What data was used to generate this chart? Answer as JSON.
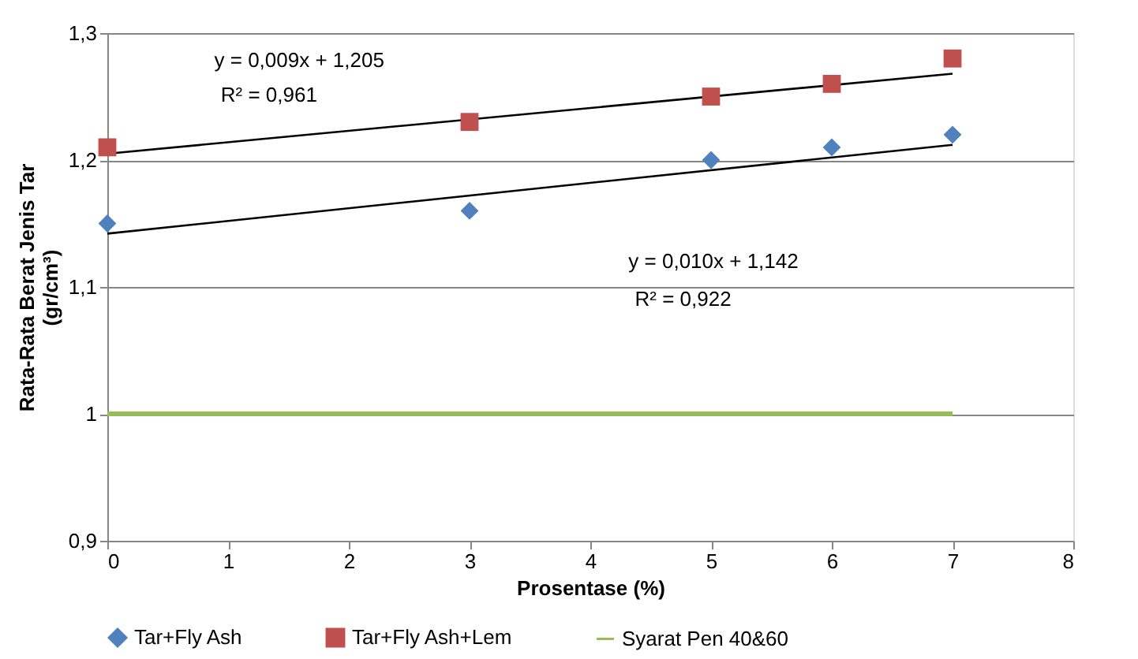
{
  "chart_data": {
    "type": "scatter",
    "xlabel": "Prosentase (%)",
    "ylabel": "Rata-Rata Berat Jenis Tar\n(gr/cm³)",
    "xlim": [
      0,
      8
    ],
    "xticks": [
      0,
      1,
      2,
      3,
      4,
      5,
      6,
      7,
      8
    ],
    "ylim": [
      0.9,
      1.3
    ],
    "yticks": [
      {
        "value": 0.9,
        "label": "0,9"
      },
      {
        "value": 1.0,
        "label": "1"
      },
      {
        "value": 1.1,
        "label": "1,1"
      },
      {
        "value": 1.2,
        "label": "1,2"
      },
      {
        "value": 1.3,
        "label": "1,3"
      }
    ],
    "grid": "y",
    "legend": "bottom",
    "series": [
      {
        "name": "Tar+Fly Ash",
        "marker": "diamond",
        "color": "#4f81bd",
        "x": [
          0,
          3,
          5,
          6,
          7
        ],
        "values": [
          1.15,
          1.16,
          1.2,
          1.21,
          1.22
        ]
      },
      {
        "name": "Tar+Fly Ash+Lem",
        "marker": "square",
        "color": "#c0504d",
        "x": [
          0,
          3,
          5,
          6,
          7
        ],
        "values": [
          1.21,
          1.23,
          1.25,
          1.26,
          1.28
        ]
      },
      {
        "name": "Syarat Pen 40&60",
        "type": "line",
        "marker": "none",
        "color": "#9bbb59",
        "x": [
          0,
          7
        ],
        "values": [
          1.0,
          1.0
        ]
      },
      {
        "type": "line",
        "color": "#000000",
        "x": [
          0,
          7
        ],
        "values": [
          1.205,
          1.268
        ]
      },
      {
        "type": "line",
        "color": "#000000",
        "x": [
          0,
          7
        ],
        "values": [
          1.142,
          1.212
        ]
      }
    ],
    "annotations": [
      "y = 0,009x + 1,205",
      "R² = 0,961",
      "y = 0,010x + 1,142",
      "R² = 0,922"
    ]
  }
}
